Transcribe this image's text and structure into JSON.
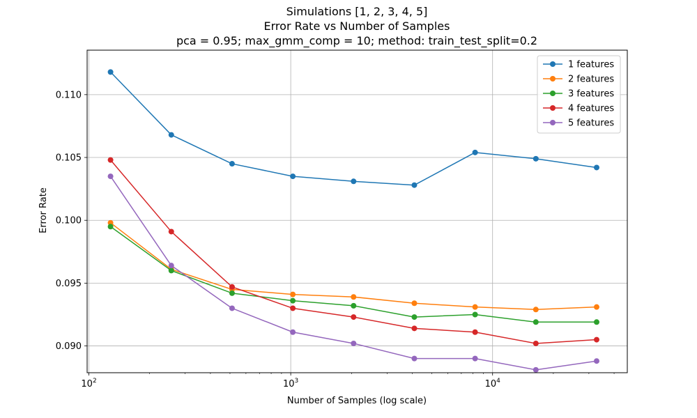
{
  "chart_data": {
    "type": "line",
    "title_lines": [
      "Simulations [1, 2, 3, 4, 5]",
      "Error Rate vs Number of Samples",
      "pca = 0.95; max_gmm_comp = 10; method: train_test_split=0.2"
    ],
    "xlabel": "Number of Samples (log scale)",
    "ylabel": "Error Rate",
    "x_scale": "log",
    "xlim": [
      98,
      46500
    ],
    "ylim": [
      0.08787,
      0.11354
    ],
    "x_major_ticks": [
      {
        "value": 100,
        "base": "10",
        "exp": "2"
      },
      {
        "value": 1000,
        "base": "10",
        "exp": "3"
      },
      {
        "value": 10000,
        "base": "10",
        "exp": "4"
      }
    ],
    "y_ticks": [
      {
        "value": 0.09,
        "label": "0.090"
      },
      {
        "value": 0.095,
        "label": "0.095"
      },
      {
        "value": 0.1,
        "label": "0.100"
      },
      {
        "value": 0.105,
        "label": "0.105"
      },
      {
        "value": 0.11,
        "label": "0.110"
      }
    ],
    "grid": true,
    "legend_position": "top-right",
    "x": [
      128,
      256,
      512,
      1024,
      2048,
      4096,
      8192,
      16384,
      32768
    ],
    "series": [
      {
        "name": "1 features",
        "color": "#1f77b4",
        "values": [
          0.1118,
          0.1068,
          0.1045,
          0.1035,
          0.1031,
          0.1028,
          0.1054,
          0.1049,
          0.1042
        ]
      },
      {
        "name": "2 features",
        "color": "#ff7f0e",
        "values": [
          0.0998,
          0.0961,
          0.0945,
          0.0941,
          0.0939,
          0.0934,
          0.0931,
          0.0929,
          0.0931
        ]
      },
      {
        "name": "3 features",
        "color": "#2ca02c",
        "values": [
          0.0995,
          0.096,
          0.0942,
          0.0936,
          0.0932,
          0.0923,
          0.0925,
          0.0919,
          0.0919
        ]
      },
      {
        "name": "4 features",
        "color": "#d62728",
        "values": [
          0.1048,
          0.0991,
          0.0947,
          0.093,
          0.0923,
          0.0914,
          0.0911,
          0.0902,
          0.0905
        ]
      },
      {
        "name": "5 features",
        "color": "#9467bd",
        "values": [
          0.1035,
          0.0964,
          0.093,
          0.0911,
          0.0902,
          0.089,
          0.089,
          0.0881,
          0.0888
        ]
      }
    ]
  }
}
